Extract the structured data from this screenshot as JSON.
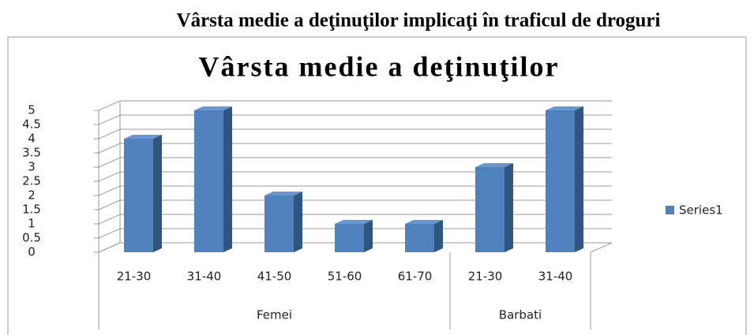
{
  "heading": "Vârsta medie a deţinuţilor implicaţi în traficul de droguri",
  "chart_data": {
    "type": "bar3d",
    "title": "Vârsta medie a deţinuţilor",
    "groups": [
      {
        "name": "Femei",
        "categories": [
          "21-30",
          "31-40",
          "41-50",
          "51-60",
          "61-70"
        ]
      },
      {
        "name": "Barbati",
        "categories": [
          "21-30",
          "31-40"
        ]
      }
    ],
    "series": [
      {
        "name": "Series1",
        "color": "#4f81bd",
        "values": [
          4,
          5,
          2,
          1,
          1,
          3,
          5
        ]
      }
    ],
    "ylim": [
      0,
      5
    ],
    "yticks": [
      0,
      0.5,
      1,
      1.5,
      2,
      2.5,
      3,
      3.5,
      4,
      4.5,
      5
    ],
    "grid": true,
    "legend": "right"
  }
}
